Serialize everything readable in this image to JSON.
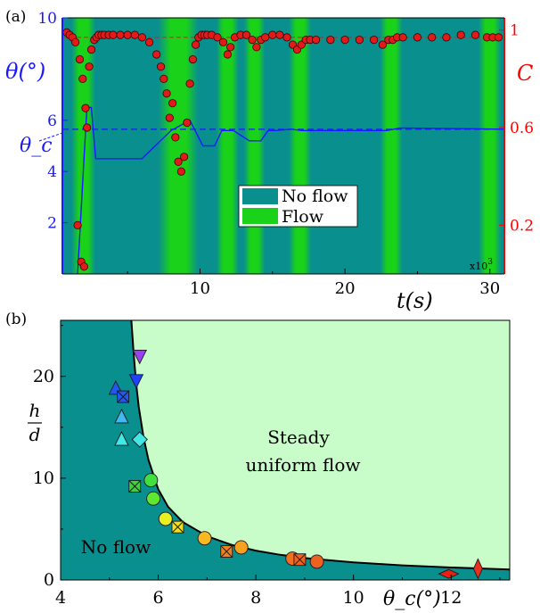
{
  "chart_data": [
    {
      "panel_label": "(a)",
      "type": "line",
      "x_label": "t(s)",
      "x_multiplier": "x10",
      "x_multiplier_exponent": "3",
      "x_ticks": [
        "10",
        "20",
        "30"
      ],
      "x_range": [
        0.5,
        31.0
      ],
      "y_left_label": "θ(°)",
      "y_left_ticks": [
        "2",
        "4",
        "6",
        "10"
      ],
      "y_left_range": [
        0,
        10
      ],
      "y_left_color": "#1a1aff",
      "y_right_label": "C",
      "y_right_ticks": [
        "0.2",
        "0.6",
        "1"
      ],
      "y_right_range": [
        0,
        1.05
      ],
      "y_right_color": "#ff0000",
      "theta_c_label": "θ_c",
      "theta_c_value": 5.65,
      "c_reference": 0.97,
      "background_colors": {
        "no_flow": "#0a8f8f",
        "flow": "#19d219"
      },
      "legend": {
        "placement": "center",
        "items": [
          {
            "label": "No flow",
            "color": "#0a8f8f"
          },
          {
            "label": "Flow",
            "color": "#19d219"
          }
        ]
      },
      "flow_intervals": [
        [
          1.5,
          2.4
        ],
        [
          7.5,
          9.5
        ],
        [
          11.5,
          12.3
        ],
        [
          13.4,
          14.1
        ],
        [
          16.5,
          17.3
        ],
        [
          22.8,
          23.6
        ],
        [
          29.6,
          30.4
        ]
      ],
      "theta_series": {
        "name": "θ",
        "color": "#1a1aff",
        "x": [
          1.55,
          2.0,
          2.2,
          2.5,
          2.8,
          3.0,
          6.0,
          8.0,
          9.3,
          10.2,
          11.0,
          11.5,
          12.3,
          13.4,
          14.2,
          14.7,
          15.2,
          16.3,
          17.0,
          22.9,
          23.8,
          31.0
        ],
        "y": [
          0,
          4.6,
          6.5,
          6.5,
          4.5,
          4.5,
          4.5,
          5.6,
          6.0,
          5.0,
          5.0,
          5.6,
          5.6,
          5.2,
          5.2,
          5.6,
          5.6,
          5.65,
          5.6,
          5.6,
          5.7,
          5.65
        ]
      },
      "C_series": {
        "name": "C",
        "color": "#e31a1a",
        "x": [
          0.8,
          1.0,
          1.2,
          1.4,
          1.55,
          1.7,
          1.8,
          1.9,
          2.0,
          2.1,
          2.2,
          2.35,
          2.5,
          2.7,
          2.85,
          3.0,
          3.2,
          3.4,
          3.7,
          4.0,
          4.5,
          5.0,
          5.5,
          6.0,
          6.5,
          7.0,
          7.3,
          7.5,
          7.7,
          7.9,
          8.1,
          8.3,
          8.5,
          8.7,
          8.9,
          9.1,
          9.3,
          9.5,
          9.7,
          9.9,
          10.1,
          10.3,
          10.5,
          10.8,
          11.2,
          11.6,
          11.9,
          12.1,
          12.4,
          12.8,
          13.2,
          13.6,
          13.9,
          14.2,
          14.5,
          15.0,
          15.5,
          16.0,
          16.4,
          16.7,
          17.0,
          17.3,
          17.6,
          18.0,
          19.0,
          20.0,
          21.0,
          22.0,
          22.6,
          23.0,
          23.3,
          23.6,
          24.0,
          25.0,
          26.0,
          27.0,
          28.0,
          29.0,
          29.8,
          30.2,
          30.6
        ],
        "y": [
          0.99,
          0.98,
          0.97,
          0.95,
          0.2,
          0.88,
          0.05,
          0.8,
          0.03,
          0.68,
          0.6,
          0.85,
          0.92,
          0.96,
          0.97,
          0.98,
          0.98,
          0.98,
          0.98,
          0.98,
          0.98,
          0.98,
          0.98,
          0.97,
          0.95,
          0.9,
          0.85,
          0.8,
          0.74,
          0.64,
          0.7,
          0.56,
          0.46,
          0.42,
          0.48,
          0.62,
          0.78,
          0.88,
          0.94,
          0.97,
          0.98,
          0.98,
          0.98,
          0.98,
          0.97,
          0.95,
          0.9,
          0.93,
          0.97,
          0.98,
          0.98,
          0.96,
          0.93,
          0.96,
          0.97,
          0.98,
          0.98,
          0.97,
          0.94,
          0.92,
          0.94,
          0.96,
          0.96,
          0.96,
          0.96,
          0.96,
          0.96,
          0.96,
          0.94,
          0.96,
          0.96,
          0.97,
          0.97,
          0.97,
          0.97,
          0.97,
          0.98,
          0.98,
          0.97,
          0.97,
          0.97
        ]
      }
    },
    {
      "panel_label": "(b)",
      "type": "scatter",
      "x_label": "θ_c(°)",
      "x_ticks": [
        "4",
        "6",
        "8",
        "10",
        "12"
      ],
      "x_range": [
        4,
        13.2
      ],
      "y_label_top": "h",
      "y_label_bottom": "d",
      "y_ticks": [
        "0",
        "10",
        "20"
      ],
      "y_range": [
        0,
        25.5
      ],
      "region_labels": {
        "steady_line1": "Steady",
        "steady_line2": "uniform flow",
        "no_flow": "No flow"
      },
      "region_colors": {
        "no_flow": "#0a8f8f",
        "flow": "#c8fcc8"
      },
      "boundary_curve": {
        "x": [
          5.45,
          5.5,
          5.55,
          5.6,
          5.7,
          5.8,
          6.0,
          6.2,
          6.5,
          7.0,
          7.5,
          8.0,
          8.5,
          9.0,
          10.0,
          11.0,
          12.0,
          13.2
        ],
        "y": [
          25.5,
          22.0,
          19.2,
          17.0,
          14.0,
          11.8,
          8.9,
          7.2,
          5.7,
          4.3,
          3.45,
          2.88,
          2.47,
          2.16,
          1.73,
          1.44,
          1.23,
          1.03
        ]
      },
      "points": [
        {
          "x": 5.13,
          "y": 18.8,
          "marker": "triangle-up",
          "color": "#2058f0"
        },
        {
          "x": 5.28,
          "y": 18.0,
          "marker": "square-x",
          "color": "#2058f0"
        },
        {
          "x": 5.55,
          "y": 19.6,
          "marker": "triangle-down",
          "color": "#2040ff"
        },
        {
          "x": 5.62,
          "y": 22.0,
          "marker": "triangle-down",
          "color": "#9a40f0"
        },
        {
          "x": 5.25,
          "y": 16.0,
          "marker": "triangle-up",
          "color": "#40b8f0"
        },
        {
          "x": 5.25,
          "y": 13.8,
          "marker": "triangle-up",
          "color": "#40e8e8"
        },
        {
          "x": 5.62,
          "y": 13.8,
          "marker": "diamond",
          "color": "#40e8e8"
        },
        {
          "x": 5.52,
          "y": 9.2,
          "marker": "square-x",
          "color": "#40d040"
        },
        {
          "x": 5.85,
          "y": 9.8,
          "marker": "circle",
          "color": "#40e040"
        },
        {
          "x": 5.9,
          "y": 8.0,
          "marker": "circle",
          "color": "#60e830"
        },
        {
          "x": 6.15,
          "y": 6.0,
          "marker": "circle",
          "color": "#e8f020"
        },
        {
          "x": 6.4,
          "y": 5.2,
          "marker": "square-x",
          "color": "#f0e020"
        },
        {
          "x": 6.95,
          "y": 4.1,
          "marker": "circle",
          "color": "#f8b820"
        },
        {
          "x": 7.7,
          "y": 3.2,
          "marker": "circle",
          "color": "#f8a020"
        },
        {
          "x": 7.4,
          "y": 2.8,
          "marker": "square-x",
          "color": "#f08020"
        },
        {
          "x": 8.75,
          "y": 2.1,
          "marker": "circle",
          "color": "#f07020"
        },
        {
          "x": 8.9,
          "y": 2.0,
          "marker": "square-x",
          "color": "#f06020"
        },
        {
          "x": 9.25,
          "y": 1.8,
          "marker": "circle",
          "color": "#f06020"
        },
        {
          "x": 11.95,
          "y": 0.6,
          "marker": "diamond-h",
          "color": "#e82010"
        },
        {
          "x": 12.55,
          "y": 1.1,
          "marker": "diamond-v",
          "color": "#e83020"
        }
      ]
    }
  ]
}
